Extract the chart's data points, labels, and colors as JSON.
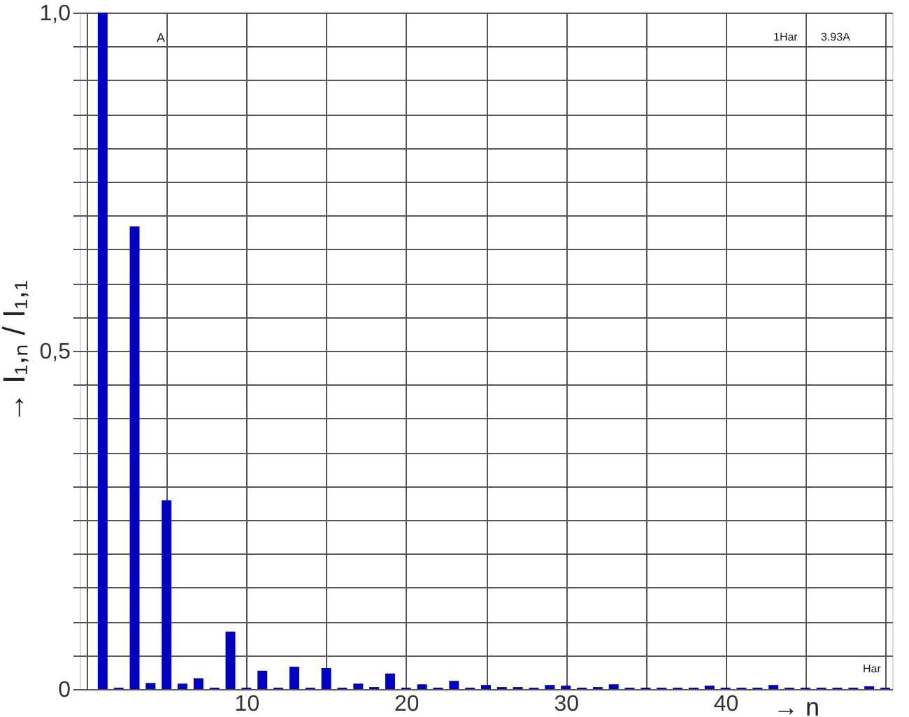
{
  "chart_data": {
    "type": "bar",
    "xlabel": "→ n",
    "ylabel": "→ I₁,ₙ / I₁,₁",
    "x": [
      1,
      2,
      3,
      4,
      5,
      6,
      7,
      8,
      9,
      10,
      11,
      12,
      13,
      14,
      15,
      16,
      17,
      18,
      19,
      20,
      21,
      22,
      23,
      24,
      25,
      26,
      27,
      28,
      29,
      30,
      31,
      32,
      33,
      34,
      35,
      36,
      37,
      38,
      39,
      40,
      41,
      42,
      43,
      44,
      45,
      46,
      47,
      48,
      49,
      50
    ],
    "series": [
      {
        "color": "#0000c0",
        "values": [
          1.0,
          0.002,
          0.684,
          0.009,
          0.279,
          0.008,
          0.016,
          0.002,
          0.085,
          0.002,
          0.027,
          0.002,
          0.033,
          0.002,
          0.031,
          0.002,
          0.008,
          0.003,
          0.023,
          0.002,
          0.007,
          0.002,
          0.012,
          0.002,
          0.006,
          0.003,
          0.003,
          0.002,
          0.006,
          0.005,
          0.002,
          0.003,
          0.007,
          0.002,
          0.002,
          0.002,
          0.002,
          0.002,
          0.005,
          0.002,
          0.002,
          0.002,
          0.006,
          0.002,
          0.002,
          0.002,
          0.002,
          0.002,
          0.004,
          0.002
        ]
      }
    ],
    "xlim": [
      0,
      50
    ],
    "xticks": [
      {
        "value": 0,
        "label": null
      },
      {
        "value": 5,
        "label": null
      },
      10,
      {
        "value": 15,
        "label": null
      },
      20,
      {
        "value": 25,
        "label": null
      },
      30,
      {
        "value": 35,
        "label": null
      },
      40,
      {
        "value": 45,
        "label": null
      },
      {
        "value": 50,
        "label": null
      }
    ],
    "ylim": [
      0,
      1
    ],
    "yticks": [
      {
        "value": 0,
        "label": "0"
      },
      {
        "value": 0.05,
        "label": null
      },
      {
        "value": 0.1,
        "label": null
      },
      {
        "value": 0.15,
        "label": null
      },
      {
        "value": 0.2,
        "label": null
      },
      {
        "value": 0.25,
        "label": null
      },
      {
        "value": 0.3,
        "label": null
      },
      {
        "value": 0.35,
        "label": null
      },
      {
        "value": 0.4,
        "label": null
      },
      {
        "value": 0.45,
        "label": null
      },
      {
        "value": 0.5,
        "label": "0,5"
      },
      {
        "value": 0.55,
        "label": null
      },
      {
        "value": 0.6,
        "label": null
      },
      {
        "value": 0.65,
        "label": null
      },
      {
        "value": 0.7,
        "label": null
      },
      {
        "value": 0.75,
        "label": null
      },
      {
        "value": 0.8,
        "label": null
      },
      {
        "value": 0.85,
        "label": null
      },
      {
        "value": 0.9,
        "label": null
      },
      {
        "value": 0.95,
        "label": null
      },
      {
        "value": 1.0,
        "label": "1,0"
      }
    ],
    "grid": true,
    "annotations": [
      "A",
      "1Har",
      "3.93A",
      "Har"
    ]
  }
}
